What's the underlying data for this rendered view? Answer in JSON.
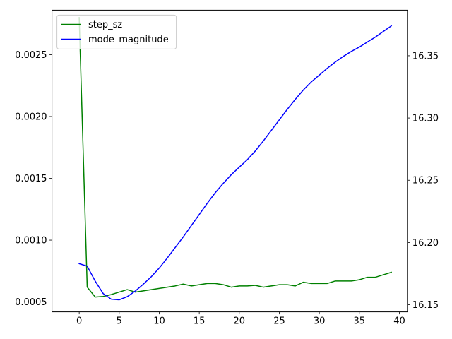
{
  "chart_data": {
    "type": "line",
    "x": [
      0,
      1,
      2,
      3,
      4,
      5,
      6,
      7,
      8,
      9,
      10,
      11,
      12,
      13,
      14,
      15,
      16,
      17,
      18,
      19,
      20,
      21,
      22,
      23,
      24,
      25,
      26,
      27,
      28,
      29,
      30,
      31,
      32,
      33,
      34,
      35,
      36,
      37,
      38,
      39
    ],
    "xlim": [
      -3.4,
      41.0
    ],
    "xticks": [
      0,
      5,
      10,
      15,
      20,
      25,
      30,
      35,
      40
    ],
    "xtick_labels": [
      "0",
      "5",
      "10",
      "15",
      "20",
      "25",
      "30",
      "35",
      "40"
    ],
    "legend_position": "upper-left",
    "grid": false,
    "axes": {
      "left": {
        "ylim": [
          0.00042,
          0.00286
        ],
        "yticks": [
          0.0005,
          0.001,
          0.0015,
          0.002,
          0.0025
        ],
        "ytick_labels": [
          "0.0005",
          "0.0010",
          "0.0015",
          "0.0020",
          "0.0025"
        ]
      },
      "right": {
        "ylim": [
          16.1443,
          16.3866
        ],
        "yticks": [
          16.15,
          16.2,
          16.25,
          16.3,
          16.35
        ],
        "ytick_labels": [
          "16.15",
          "16.20",
          "16.25",
          "16.30",
          "16.35"
        ]
      }
    },
    "series": [
      {
        "name": "step_sz",
        "axis": "left",
        "color": "#008000",
        "values": [
          0.0028,
          0.00062,
          0.00054,
          0.000545,
          0.00056,
          0.00058,
          0.0006,
          0.00058,
          0.00059,
          0.0006,
          0.00061,
          0.00062,
          0.00063,
          0.000645,
          0.00063,
          0.00064,
          0.00065,
          0.00065,
          0.00064,
          0.00062,
          0.00063,
          0.00063,
          0.000635,
          0.00062,
          0.00063,
          0.00064,
          0.00064,
          0.00063,
          0.00066,
          0.00065,
          0.00065,
          0.00065,
          0.00067,
          0.00067,
          0.00067,
          0.00068,
          0.0007,
          0.0007,
          0.00072,
          0.00074
        ]
      },
      {
        "name": "mode_magnitude",
        "axis": "right",
        "color": "#0000ff",
        "values": [
          16.183,
          16.181,
          16.169,
          16.159,
          16.1545,
          16.154,
          16.1565,
          16.161,
          16.1665,
          16.1725,
          16.1795,
          16.1875,
          16.196,
          16.2045,
          16.2135,
          16.2225,
          16.2315,
          16.24,
          16.2475,
          16.2545,
          16.2605,
          16.2665,
          16.2735,
          16.2815,
          16.29,
          16.2985,
          16.307,
          16.315,
          16.3225,
          16.329,
          16.3345,
          16.34,
          16.345,
          16.3495,
          16.3535,
          16.357,
          16.361,
          16.365,
          16.3695,
          16.374
        ]
      }
    ]
  }
}
